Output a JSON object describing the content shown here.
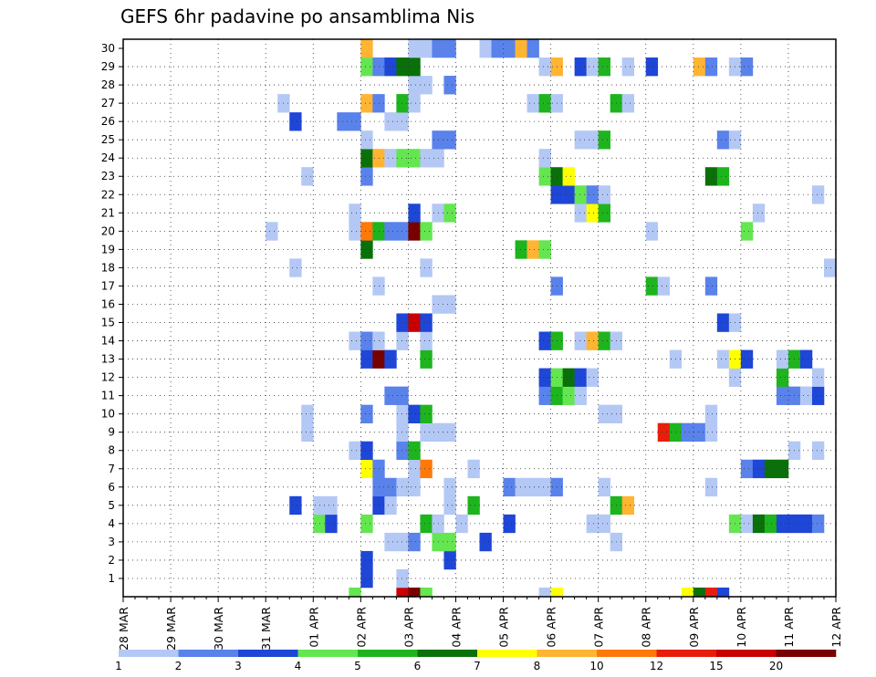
{
  "chart_data": {
    "type": "heatmap",
    "title": "GEFS 6hr padavine po ansamblima Nis",
    "xlabel": "",
    "ylabel": "",
    "x_ticks": [
      "28 MAR",
      "29 MAR",
      "30 MAR",
      "31 MAR",
      "01 APR",
      "02 APR",
      "03 APR",
      "04 APR",
      "05 APR",
      "06 APR",
      "07 APR",
      "08 APR",
      "09 APR",
      "10 APR",
      "11 APR",
      "12 APR"
    ],
    "x_step_hours": 6,
    "y_ticks": [
      1,
      2,
      3,
      4,
      5,
      6,
      7,
      8,
      9,
      10,
      11,
      12,
      13,
      14,
      15,
      16,
      17,
      18,
      19,
      20,
      21,
      22,
      23,
      24,
      25,
      26,
      27,
      28,
      29,
      30
    ],
    "ylim": [
      0,
      30
    ],
    "grid": true,
    "colorbar": {
      "levels": [
        "1",
        "2",
        "3",
        "4",
        "5",
        "6",
        "7",
        "8",
        "10",
        "12",
        "15",
        "20"
      ],
      "colors": [
        "#b4c8f5",
        "#5a82eb",
        "#1e46d7",
        "#64e650",
        "#1eb41e",
        "#0a700a",
        "#ffff00",
        "#ffb432",
        "#ff780a",
        "#e61e0a",
        "#c80000",
        "#780000"
      ],
      "placement": "bottom"
    },
    "cells": [
      [
        4.75,
        0,
        4
      ],
      [
        5.75,
        0,
        11
      ],
      [
        6.0,
        0,
        12
      ],
      [
        6.25,
        0,
        4
      ],
      [
        8.75,
        0,
        1
      ],
      [
        9.0,
        0,
        7
      ],
      [
        11.75,
        0,
        7
      ],
      [
        12.0,
        0,
        6
      ],
      [
        12.25,
        0,
        10
      ],
      [
        12.5,
        0,
        3
      ],
      [
        5.0,
        1,
        3
      ],
      [
        5.75,
        1,
        1
      ],
      [
        5.0,
        2,
        3
      ],
      [
        6.75,
        2,
        3
      ],
      [
        5.5,
        3,
        1
      ],
      [
        5.75,
        3,
        1
      ],
      [
        6.0,
        3,
        2
      ],
      [
        6.5,
        3,
        4
      ],
      [
        6.75,
        3,
        4
      ],
      [
        7.5,
        3,
        3
      ],
      [
        10.25,
        3,
        1
      ],
      [
        4.0,
        4,
        4
      ],
      [
        4.25,
        4,
        3
      ],
      [
        5.0,
        4,
        4
      ],
      [
        6.25,
        4,
        5
      ],
      [
        6.5,
        4,
        1
      ],
      [
        7.0,
        4,
        1
      ],
      [
        8.0,
        4,
        3
      ],
      [
        9.75,
        4,
        1
      ],
      [
        10.0,
        4,
        1
      ],
      [
        12.75,
        4,
        4
      ],
      [
        13.0,
        4,
        1
      ],
      [
        13.25,
        4,
        6
      ],
      [
        13.5,
        4,
        5
      ],
      [
        13.75,
        4,
        3
      ],
      [
        14.0,
        4,
        3
      ],
      [
        14.25,
        4,
        3
      ],
      [
        14.5,
        4,
        2
      ],
      [
        3.5,
        5,
        3
      ],
      [
        4.0,
        5,
        1
      ],
      [
        4.25,
        5,
        1
      ],
      [
        5.25,
        5,
        3
      ],
      [
        5.5,
        5,
        1
      ],
      [
        6.75,
        5,
        1
      ],
      [
        7.25,
        5,
        5
      ],
      [
        10.25,
        5,
        5
      ],
      [
        10.5,
        5,
        8
      ],
      [
        5.25,
        6,
        2
      ],
      [
        5.5,
        6,
        2
      ],
      [
        5.75,
        6,
        1
      ],
      [
        6.0,
        6,
        1
      ],
      [
        6.75,
        6,
        1
      ],
      [
        8.0,
        6,
        2
      ],
      [
        8.25,
        6,
        1
      ],
      [
        8.5,
        6,
        1
      ],
      [
        8.75,
        6,
        1
      ],
      [
        9.0,
        6,
        2
      ],
      [
        10.0,
        6,
        1
      ],
      [
        12.25,
        6,
        1
      ],
      [
        5.0,
        7,
        7
      ],
      [
        5.25,
        7,
        2
      ],
      [
        6.0,
        7,
        1
      ],
      [
        6.25,
        7,
        9
      ],
      [
        7.25,
        7,
        1
      ],
      [
        13.0,
        7,
        2
      ],
      [
        13.25,
        7,
        3
      ],
      [
        13.5,
        7,
        6
      ],
      [
        13.75,
        7,
        6
      ],
      [
        4.75,
        8,
        1
      ],
      [
        5.0,
        8,
        3
      ],
      [
        5.75,
        8,
        2
      ],
      [
        6.0,
        8,
        5
      ],
      [
        14.0,
        8,
        1
      ],
      [
        14.5,
        8,
        1
      ],
      [
        3.75,
        9,
        1
      ],
      [
        5.75,
        9,
        1
      ],
      [
        6.25,
        9,
        1
      ],
      [
        6.5,
        9,
        1
      ],
      [
        6.75,
        9,
        1
      ],
      [
        11.25,
        9,
        10
      ],
      [
        11.5,
        9,
        5
      ],
      [
        11.75,
        9,
        2
      ],
      [
        12.0,
        9,
        2
      ],
      [
        12.25,
        9,
        1
      ],
      [
        3.75,
        10,
        1
      ],
      [
        5.0,
        10,
        2
      ],
      [
        5.75,
        10,
        1
      ],
      [
        6.0,
        10,
        3
      ],
      [
        6.25,
        10,
        5
      ],
      [
        10.0,
        10,
        1
      ],
      [
        10.25,
        10,
        1
      ],
      [
        12.25,
        10,
        1
      ],
      [
        5.5,
        11,
        2
      ],
      [
        5.75,
        11,
        2
      ],
      [
        8.75,
        11,
        2
      ],
      [
        9.0,
        11,
        5
      ],
      [
        9.25,
        11,
        4
      ],
      [
        9.5,
        11,
        1
      ],
      [
        13.75,
        11,
        2
      ],
      [
        14.0,
        11,
        2
      ],
      [
        14.25,
        11,
        1
      ],
      [
        14.5,
        11,
        3
      ],
      [
        8.75,
        12,
        3
      ],
      [
        9.0,
        12,
        4
      ],
      [
        9.25,
        12,
        6
      ],
      [
        9.5,
        12,
        3
      ],
      [
        9.75,
        12,
        1
      ],
      [
        12.75,
        12,
        1
      ],
      [
        13.75,
        12,
        5
      ],
      [
        14.5,
        12,
        1
      ],
      [
        5.0,
        13,
        3
      ],
      [
        5.25,
        13,
        12
      ],
      [
        5.5,
        13,
        3
      ],
      [
        6.25,
        13,
        5
      ],
      [
        11.5,
        13,
        1
      ],
      [
        12.5,
        13,
        1
      ],
      [
        12.75,
        13,
        7
      ],
      [
        13.0,
        13,
        3
      ],
      [
        13.75,
        13,
        1
      ],
      [
        14.0,
        13,
        5
      ],
      [
        14.25,
        13,
        3
      ],
      [
        4.75,
        14,
        1
      ],
      [
        5.0,
        14,
        2
      ],
      [
        5.25,
        14,
        1
      ],
      [
        5.75,
        14,
        1
      ],
      [
        6.25,
        14,
        1
      ],
      [
        8.75,
        14,
        3
      ],
      [
        9.0,
        14,
        5
      ],
      [
        9.5,
        14,
        1
      ],
      [
        9.75,
        14,
        8
      ],
      [
        10.0,
        14,
        5
      ],
      [
        10.25,
        14,
        1
      ],
      [
        5.75,
        15,
        3
      ],
      [
        6.0,
        15,
        11
      ],
      [
        6.25,
        15,
        3
      ],
      [
        12.5,
        15,
        3
      ],
      [
        12.75,
        15,
        1
      ],
      [
        6.5,
        16,
        1
      ],
      [
        6.75,
        16,
        1
      ],
      [
        5.25,
        17,
        1
      ],
      [
        9.0,
        17,
        2
      ],
      [
        11.0,
        17,
        5
      ],
      [
        11.25,
        17,
        1
      ],
      [
        12.25,
        17,
        2
      ],
      [
        3.5,
        18,
        1
      ],
      [
        6.25,
        18,
        1
      ],
      [
        14.75,
        18,
        1
      ],
      [
        5.0,
        19,
        6
      ],
      [
        8.25,
        19,
        5
      ],
      [
        8.5,
        19,
        8
      ],
      [
        8.75,
        19,
        4
      ],
      [
        3.0,
        20,
        1
      ],
      [
        4.75,
        20,
        1
      ],
      [
        5.0,
        20,
        9
      ],
      [
        5.25,
        20,
        5
      ],
      [
        5.5,
        20,
        2
      ],
      [
        5.75,
        20,
        2
      ],
      [
        6.0,
        20,
        12
      ],
      [
        6.25,
        20,
        4
      ],
      [
        11.0,
        20,
        1
      ],
      [
        13.0,
        20,
        4
      ],
      [
        4.75,
        21,
        1
      ],
      [
        6.0,
        21,
        3
      ],
      [
        6.5,
        21,
        1
      ],
      [
        6.75,
        21,
        4
      ],
      [
        9.5,
        21,
        1
      ],
      [
        9.75,
        21,
        7
      ],
      [
        10.0,
        21,
        5
      ],
      [
        13.25,
        21,
        1
      ],
      [
        9.0,
        22,
        3
      ],
      [
        9.25,
        22,
        3
      ],
      [
        9.5,
        22,
        4
      ],
      [
        9.75,
        22,
        2
      ],
      [
        10.0,
        22,
        1
      ],
      [
        14.5,
        22,
        1
      ],
      [
        3.75,
        23,
        1
      ],
      [
        5.0,
        23,
        2
      ],
      [
        8.75,
        23,
        4
      ],
      [
        9.0,
        23,
        6
      ],
      [
        9.25,
        23,
        7
      ],
      [
        12.25,
        23,
        6
      ],
      [
        12.5,
        23,
        5
      ],
      [
        5.0,
        24,
        6
      ],
      [
        5.25,
        24,
        8
      ],
      [
        5.5,
        24,
        1
      ],
      [
        5.75,
        24,
        4
      ],
      [
        6.0,
        24,
        4
      ],
      [
        6.25,
        24,
        1
      ],
      [
        6.5,
        24,
        1
      ],
      [
        8.75,
        24,
        1
      ],
      [
        5.0,
        25,
        1
      ],
      [
        6.5,
        25,
        2
      ],
      [
        6.75,
        25,
        2
      ],
      [
        9.5,
        25,
        1
      ],
      [
        9.75,
        25,
        1
      ],
      [
        10.0,
        25,
        5
      ],
      [
        12.5,
        25,
        2
      ],
      [
        12.75,
        25,
        1
      ],
      [
        3.5,
        26,
        3
      ],
      [
        4.5,
        26,
        2
      ],
      [
        4.75,
        26,
        2
      ],
      [
        5.5,
        26,
        1
      ],
      [
        5.75,
        26,
        1
      ],
      [
        3.25,
        27,
        1
      ],
      [
        5.0,
        27,
        8
      ],
      [
        5.25,
        27,
        2
      ],
      [
        5.75,
        27,
        5
      ],
      [
        6.0,
        27,
        1
      ],
      [
        8.5,
        27,
        1
      ],
      [
        8.75,
        27,
        5
      ],
      [
        9.0,
        27,
        1
      ],
      [
        10.25,
        27,
        5
      ],
      [
        10.5,
        27,
        1
      ],
      [
        6.0,
        28,
        1
      ],
      [
        6.25,
        28,
        1
      ],
      [
        6.75,
        28,
        2
      ],
      [
        5.0,
        29,
        4
      ],
      [
        5.25,
        29,
        2
      ],
      [
        5.5,
        29,
        3
      ],
      [
        5.75,
        29,
        6
      ],
      [
        6.0,
        29,
        6
      ],
      [
        8.75,
        29,
        1
      ],
      [
        9.0,
        29,
        8
      ],
      [
        9.5,
        29,
        3
      ],
      [
        9.75,
        29,
        1
      ],
      [
        10.0,
        29,
        5
      ],
      [
        10.5,
        29,
        1
      ],
      [
        11.0,
        29,
        3
      ],
      [
        12.0,
        29,
        8
      ],
      [
        12.25,
        29,
        2
      ],
      [
        12.75,
        29,
        1
      ],
      [
        13.0,
        29,
        2
      ],
      [
        5.0,
        30,
        8
      ],
      [
        6.0,
        30,
        1
      ],
      [
        6.25,
        30,
        1
      ],
      [
        6.5,
        30,
        2
      ],
      [
        6.75,
        30,
        2
      ],
      [
        7.5,
        30,
        1
      ],
      [
        7.75,
        30,
        2
      ],
      [
        8.0,
        30,
        2
      ],
      [
        8.25,
        30,
        8
      ],
      [
        8.5,
        30,
        2
      ]
    ]
  }
}
